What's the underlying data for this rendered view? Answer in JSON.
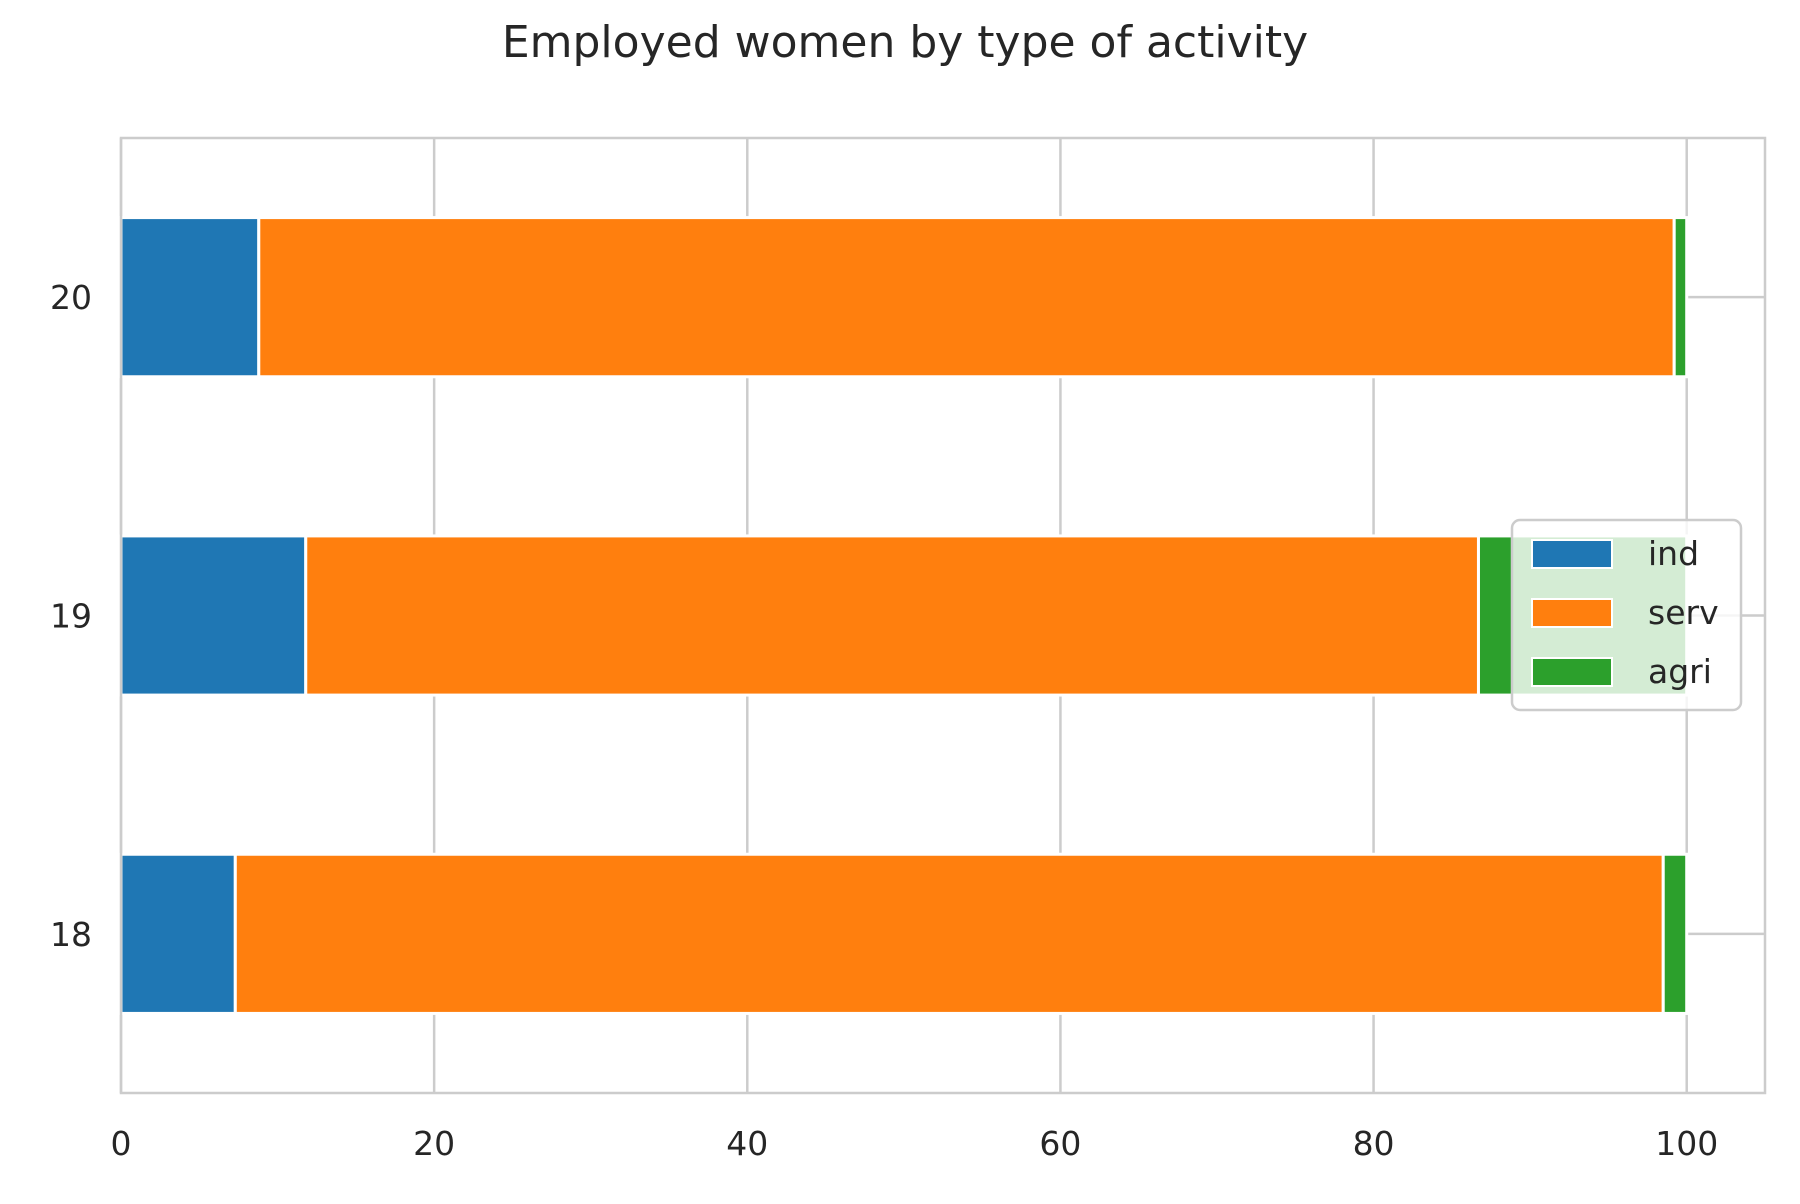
{
  "chart_data": {
    "type": "bar",
    "orientation": "horizontal",
    "stacked": true,
    "title": "Employed women by type of activity",
    "xlabel": "",
    "ylabel": "",
    "categories": [
      "18",
      "19",
      "20"
    ],
    "series": [
      {
        "name": "ind",
        "color": "#1f77b4",
        "values": [
          7.3,
          11.8,
          8.8
        ]
      },
      {
        "name": "serv",
        "color": "#ff7f0e",
        "values": [
          91.2,
          74.9,
          90.4
        ]
      },
      {
        "name": "agri",
        "color": "#2ca02c",
        "values": [
          1.5,
          13.3,
          0.8
        ]
      }
    ],
    "xlim": [
      0,
      105
    ],
    "xticks": [
      0,
      20,
      40,
      60,
      80,
      100
    ],
    "grid": true,
    "legend_position": "center-right"
  }
}
